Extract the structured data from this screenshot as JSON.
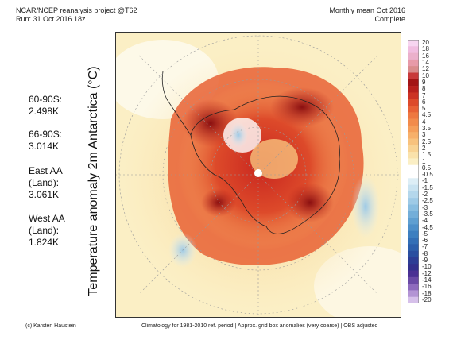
{
  "header": {
    "left_line1": "NCAR/NCEP reanalysis project @T62",
    "left_line2": "Run: 31 Oct 2016 18z",
    "right_line1": "Monthly mean Oct 2016",
    "right_line2": "Complete"
  },
  "axis_label": "Temperature anomaly 2m Antarctica (°C)",
  "stats": [
    {
      "label": "60-90S:",
      "value": "2.498K"
    },
    {
      "label": "66-90S:",
      "value": "3.014K"
    },
    {
      "label": "East AA",
      "label2": "(Land):",
      "value": "3.061K"
    },
    {
      "label": "West AA",
      "label2": "(Land):",
      "value": "1.824K"
    }
  ],
  "colorbar": {
    "ticks": [
      "20",
      "18",
      "16",
      "14",
      "12",
      "10",
      "9",
      "8",
      "7",
      "6",
      "5",
      "4.5",
      "4",
      "3.5",
      "3",
      "2.5",
      "2",
      "1.5",
      "1",
      "0.5",
      "-0.5",
      "-1",
      "-1.5",
      "-2",
      "-2.5",
      "-3",
      "-3.5",
      "-4",
      "-4.5",
      "-5",
      "-6",
      "-7",
      "-8",
      "-9",
      "-10",
      "-12",
      "-14",
      "-16",
      "-18",
      "-20"
    ],
    "colors": [
      "#f7d5f0",
      "#f1bde0",
      "#ebb0cb",
      "#e79aa8",
      "#d98c8c",
      "#c83a3a",
      "#a31515",
      "#b8201c",
      "#cc3223",
      "#dd4a2a",
      "#e86135",
      "#ee7840",
      "#f28b4b",
      "#f59e59",
      "#f7b06a",
      "#f8c27d",
      "#f9d393",
      "#fae2ab",
      "#fbefc5",
      "#ffffff",
      "#ffffff",
      "#ddeef6",
      "#c9e3f1",
      "#b4d7ec",
      "#9ecae6",
      "#88bde0",
      "#73aed9",
      "#5f9fd1",
      "#4d8fc9",
      "#3d7fc0",
      "#336fb6",
      "#2c5fab",
      "#2a4ea0",
      "#2d3d95",
      "#33308c",
      "#4a3093",
      "#6a4aa5",
      "#8e6bbd",
      "#b394d4",
      "#d6c0ea"
    ],
    "colors_note": "top to bottom"
  },
  "footer": {
    "left": "(c) Karsten Haustein",
    "right": "Climatology for 1981-2010 ref. period | Approx. grid box anomalies (very coarse) | OBS adjusted"
  }
}
